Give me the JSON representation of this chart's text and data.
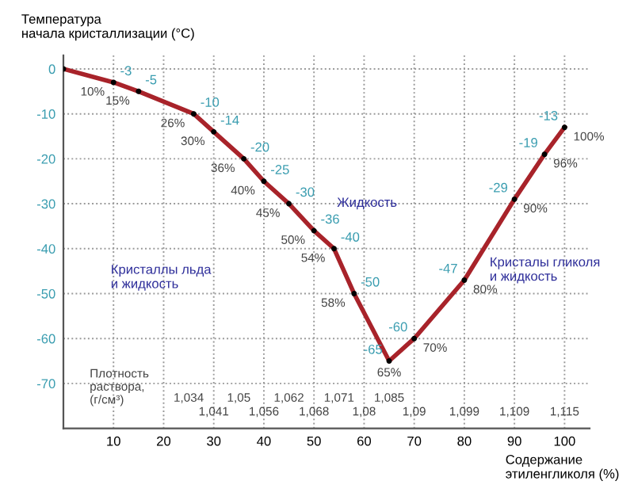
{
  "chart_data": {
    "type": "line",
    "ylabel": "Температура\nначала кристаллизации (°С)",
    "xlabel": "Содержание\nэтиленгликоля (%)",
    "x": [
      0,
      10,
      15,
      26,
      30,
      36,
      40,
      45,
      50,
      54,
      58,
      65,
      70,
      80,
      90,
      96,
      100
    ],
    "series": [
      {
        "color": "#a8232a",
        "values": [
          0,
          -3,
          -5,
          -10,
          -14,
          -20,
          -25,
          -30,
          -36,
          -40,
          -50,
          -65,
          -60,
          -47,
          -29,
          -19,
          -13
        ],
        "value_labels": [
          null,
          "-3",
          "-5",
          "-10",
          "-14",
          "-20",
          "-25",
          "-30",
          "-36",
          "-40",
          "-50",
          "-65",
          "-60",
          "-47",
          "-29",
          "-19",
          "-13"
        ]
      }
    ],
    "xlim": [
      0,
      105
    ],
    "ylim": [
      -80,
      3
    ],
    "xticks": [
      10,
      20,
      30,
      40,
      50,
      60,
      70,
      80,
      90,
      100
    ],
    "yticks": [
      -70,
      -60,
      -50,
      -40,
      -30,
      -20,
      -10,
      0
    ],
    "grid": true,
    "marker": "none",
    "line_style": "solid",
    "annotations": [
      "Кристаллы льда\nи жидкость",
      "Жидкость",
      "Кристалы гликоля\nи жидкость",
      "Плотность\nраствора,\n(г/см³)",
      {
        "text": "10%",
        "x": 10,
        "y": -3
      },
      {
        "text": "15%",
        "x": 15,
        "y": -5
      },
      {
        "text": "26%",
        "x": 26,
        "y": -10
      },
      {
        "text": "30%",
        "x": 30,
        "y": -14
      },
      {
        "text": "36%",
        "x": 36,
        "y": -20
      },
      {
        "text": "40%",
        "x": 40,
        "y": -25
      },
      {
        "text": "45%",
        "x": 45,
        "y": -30
      },
      {
        "text": "50%",
        "x": 50,
        "y": -36
      },
      {
        "text": "54%",
        "x": 54,
        "y": -40
      },
      {
        "text": "58%",
        "x": 58,
        "y": -50
      },
      {
        "text": "65%",
        "x": 65,
        "y": -65
      },
      {
        "text": "70%",
        "x": 70,
        "y": -60
      },
      {
        "text": "80%",
        "x": 80,
        "y": -47
      },
      {
        "text": "90%",
        "x": 90,
        "y": -29
      },
      {
        "text": "96%",
        "x": 96,
        "y": -19
      },
      {
        "text": "100%",
        "x": 100,
        "y": -13
      },
      "1,034",
      "1,041",
      "1,05",
      "1,056",
      "1,062",
      "1,068",
      "1,071",
      "1,08",
      "1,085",
      "1,09",
      "1,099",
      "1,109",
      "1,115"
    ]
  }
}
